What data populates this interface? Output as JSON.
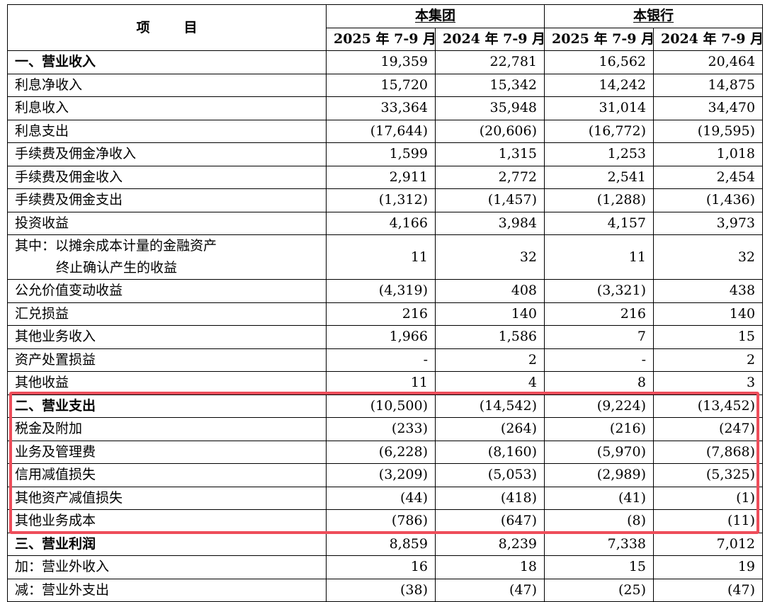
{
  "header": {
    "item_label": "项",
    "item_label2": "目",
    "group_bank_group": "本集团",
    "group_bank": "本银行",
    "periods": [
      "2025 年 7-9 月",
      "2024 年 7-9 月",
      "2025 年 7-9 月",
      "2024 年 7-9 月"
    ]
  },
  "rows": [
    {
      "label": "一、营业收入",
      "level": 1,
      "values": [
        "19,359",
        "22,781",
        "16,562",
        "20,464"
      ]
    },
    {
      "label": "利息净收入",
      "level": 2,
      "values": [
        "15,720",
        "15,342",
        "14,242",
        "14,875"
      ]
    },
    {
      "label": "利息收入",
      "level": 3,
      "values": [
        "33,364",
        "35,948",
        "31,014",
        "34,470"
      ]
    },
    {
      "label": "利息支出",
      "level": 3,
      "values": [
        "(17,644)",
        "(20,606)",
        "(16,772)",
        "(19,595)"
      ]
    },
    {
      "label": "手续费及佣金净收入",
      "level": 2,
      "values": [
        "1,599",
        "1,315",
        "1,253",
        "1,018"
      ]
    },
    {
      "label": "手续费及佣金收入",
      "level": 3,
      "values": [
        "2,911",
        "2,772",
        "2,541",
        "2,454"
      ]
    },
    {
      "label": "手续费及佣金支出",
      "level": 3,
      "values": [
        "(1,312)",
        "(1,457)",
        "(1,288)",
        "(1,436)"
      ]
    },
    {
      "label": "投资收益",
      "level": 2,
      "values": [
        "4,166",
        "3,984",
        "4,157",
        "3,973"
      ]
    },
    {
      "label": "其中：以摊余成本计量的金融资产",
      "label2": "终止确认产生的收益",
      "level": 3,
      "values": [
        "11",
        "32",
        "11",
        "32"
      ]
    },
    {
      "label": "公允价值变动收益",
      "level": 2,
      "values": [
        "(4,319)",
        "408",
        "(3,321)",
        "438"
      ]
    },
    {
      "label": "汇兑损益",
      "level": 2,
      "values": [
        "216",
        "140",
        "216",
        "140"
      ]
    },
    {
      "label": "其他业务收入",
      "level": 2,
      "values": [
        "1,966",
        "1,586",
        "7",
        "15"
      ]
    },
    {
      "label": "资产处置损益",
      "level": 2,
      "values": [
        "-",
        "2",
        "-",
        "2"
      ]
    },
    {
      "label": "其他收益",
      "level": 2,
      "values": [
        "11",
        "4",
        "8",
        "3"
      ]
    },
    {
      "label": "二、营业支出",
      "level": 1,
      "values": [
        "(10,500)",
        "(14,542)",
        "(9,224)",
        "(13,452)"
      ]
    },
    {
      "label": "税金及附加",
      "level": 2,
      "values": [
        "(233)",
        "(264)",
        "(216)",
        "(247)"
      ]
    },
    {
      "label": "业务及管理费",
      "level": 2,
      "values": [
        "(6,228)",
        "(8,160)",
        "(5,970)",
        "(7,868)"
      ]
    },
    {
      "label": "信用减值损失",
      "level": 2,
      "values": [
        "(3,209)",
        "(5,053)",
        "(2,989)",
        "(5,325)"
      ]
    },
    {
      "label": "其他资产减值损失",
      "level": 2,
      "values": [
        "(44)",
        "(418)",
        "(41)",
        "(1)"
      ]
    },
    {
      "label": "其他业务成本",
      "level": 2,
      "values": [
        "(786)",
        "(647)",
        "(8)",
        "(11)"
      ]
    },
    {
      "label": "三、营业利润",
      "level": 1,
      "values": [
        "8,859",
        "8,239",
        "7,338",
        "7,012"
      ]
    },
    {
      "label": "加：营业外收入",
      "level": 2,
      "values": [
        "16",
        "18",
        "15",
        "19"
      ]
    },
    {
      "label": "减：营业外支出",
      "level": 2,
      "values": [
        "(38)",
        "(47)",
        "(25)",
        "(47)"
      ]
    }
  ],
  "highlight_color": "#ee4d5a"
}
